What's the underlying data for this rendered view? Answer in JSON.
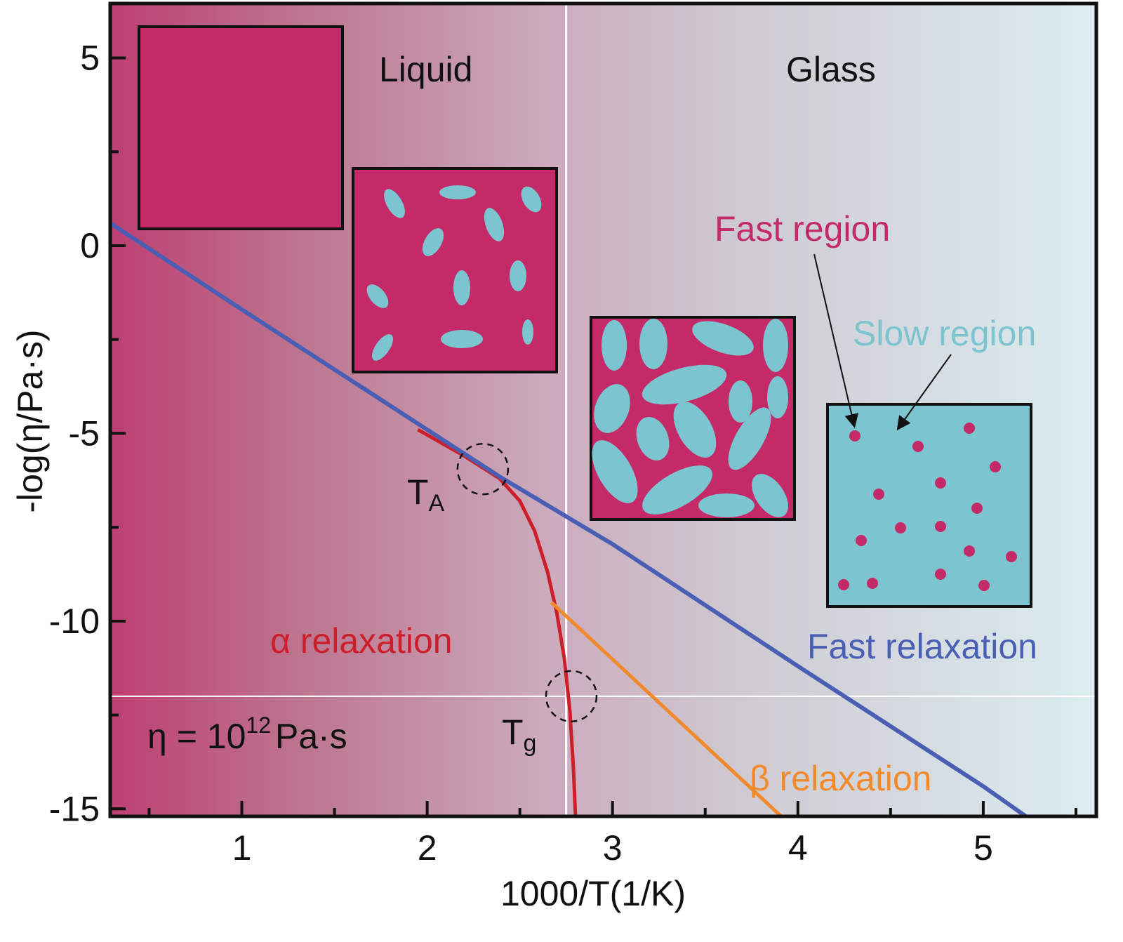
{
  "chart_data": {
    "type": "line",
    "xlabel": "1000/T(1/K)",
    "ylabel": "-log(η/Pa·s)",
    "xlim": [
      0.29,
      5.61
    ],
    "ylim": [
      -15.2,
      6.45
    ],
    "xticks": [
      1,
      2,
      3,
      4,
      5
    ],
    "yticks": [
      5,
      0,
      -5,
      -10,
      -15
    ],
    "xtick_labels": [
      "1",
      "2",
      "3",
      "4",
      "5"
    ],
    "ytick_labels": [
      "5",
      "0",
      "-5",
      "-10",
      "-15"
    ],
    "grid": false,
    "series": [
      {
        "name": "Fast relaxation",
        "color": "#4a5fb3",
        "points": [
          [
            0.29,
            0.6
          ],
          [
            1,
            -1.7
          ],
          [
            2,
            -4.9
          ],
          [
            2.39,
            -6.15
          ],
          [
            3,
            -7.95
          ],
          [
            4,
            -11.2
          ],
          [
            5,
            -14.4
          ],
          [
            5.23,
            -15.2
          ]
        ]
      },
      {
        "name": "α relaxation",
        "color": "#cc1f2a",
        "points": [
          [
            1.95,
            -4.9
          ],
          [
            2.2,
            -5.6
          ],
          [
            2.39,
            -6.2
          ],
          [
            2.5,
            -6.8
          ],
          [
            2.58,
            -7.6
          ],
          [
            2.65,
            -8.7
          ],
          [
            2.7,
            -9.8
          ],
          [
            2.74,
            -11
          ],
          [
            2.77,
            -12.4
          ],
          [
            2.79,
            -14
          ],
          [
            2.8,
            -15.2
          ]
        ]
      },
      {
        "name": "β relaxation",
        "color": "#f08a2c",
        "points": [
          [
            2.67,
            -9.5
          ],
          [
            3.91,
            -15.2
          ]
        ]
      }
    ],
    "reference_lines": {
      "vertical_x": 2.75,
      "horizontal_y": -12
    },
    "markers": [
      {
        "label": "T",
        "subscript": "A",
        "x": 2.3,
        "y": -5.95
      },
      {
        "label": "T",
        "subscript": "g",
        "x": 2.77,
        "y": -12
      }
    ],
    "regions": {
      "left": "Liquid",
      "right": "Glass"
    },
    "annotations": {
      "eta": "η = 10",
      "eta_exp": "12",
      "eta_unit": "Pa·s",
      "fast_region": "Fast region",
      "slow_region": "Slow region"
    },
    "colors": {
      "magenta": "#c42a67",
      "cyan": "#7cc4cf",
      "bg_left": "#bd3f72",
      "bg_mid": "#cbb2c2",
      "bg_right": "#dcedf0"
    }
  }
}
